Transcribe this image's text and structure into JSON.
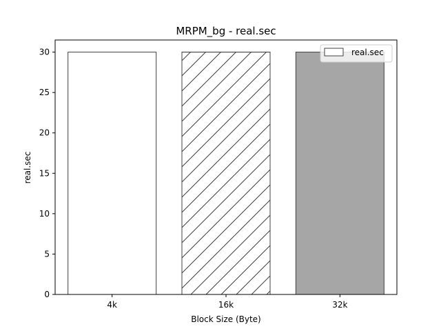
{
  "chart_data": {
    "type": "bar",
    "title": "MRPM_bg - real.sec",
    "xlabel": "Block Size (Byte)",
    "ylabel": "real.sec",
    "categories": [
      "4k",
      "16k",
      "32k"
    ],
    "series": [
      {
        "name": "real.sec",
        "values": [
          30,
          30,
          30
        ]
      }
    ],
    "bar_styles": [
      {
        "fill": "#ffffff",
        "hatch": "none"
      },
      {
        "fill": "#ffffff",
        "hatch": "diagonal"
      },
      {
        "fill": "#a6a6a6",
        "hatch": "none"
      }
    ],
    "ylim": [
      0,
      31.5
    ],
    "yticks": [
      0,
      5,
      10,
      15,
      20,
      25,
      30
    ],
    "grid": false,
    "legend": {
      "placement": "top-right",
      "entries": [
        "real.sec"
      ]
    },
    "colors": {
      "edge": "#404040",
      "axis": "#000000"
    }
  }
}
